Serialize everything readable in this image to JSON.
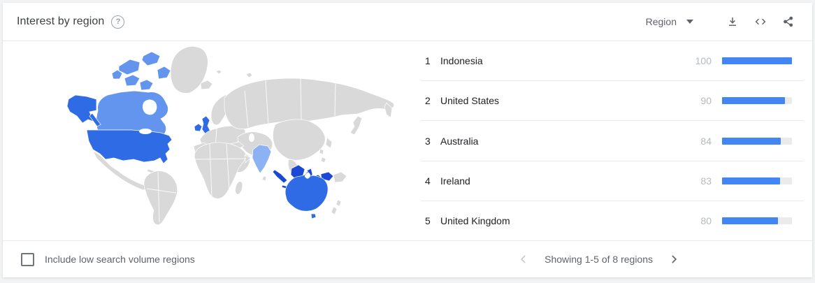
{
  "theme": {
    "page-bg": "#f1f3f4",
    "card-bg": "#ffffff",
    "divider": "#e8eaed",
    "title": "#3c4043",
    "text": "#202124",
    "muted": "#5f6368",
    "value": "#b6babe",
    "bar": "#4285f4",
    "bar-track": "#ebebeb",
    "help": "#9aa0a6",
    "arrow-disabled": "#c8cacc",
    "checkbox-border": "#70757a"
  },
  "map_colors": {
    "highest": "#1b49d5",
    "high": "#2e6be4",
    "medium": "#6395ef",
    "low": "#8db2f4",
    "none": "#d9d9d9"
  },
  "header": {
    "title": "Interest by region",
    "help_glyph": "?",
    "region_selector": {
      "value": "Region"
    },
    "actions": {
      "download": "download-icon",
      "embed": "embed-code-icon",
      "share": "share-icon"
    }
  },
  "map": {
    "regions": [
      {
        "name": "Indonesia",
        "shade": "highest"
      },
      {
        "name": "United States",
        "shade": "high"
      },
      {
        "name": "Australia",
        "shade": "high"
      },
      {
        "name": "Ireland",
        "shade": "high"
      },
      {
        "name": "United Kingdom",
        "shade": "high"
      },
      {
        "name": "Canada",
        "shade": "medium"
      },
      {
        "name": "India",
        "shade": "low"
      }
    ]
  },
  "list": {
    "max_value": 100,
    "rows": [
      {
        "rank": "1",
        "name": "Indonesia",
        "value": "100"
      },
      {
        "rank": "2",
        "name": "United States",
        "value": "90"
      },
      {
        "rank": "3",
        "name": "Australia",
        "value": "84"
      },
      {
        "rank": "4",
        "name": "Ireland",
        "value": "83"
      },
      {
        "rank": "5",
        "name": "United Kingdom",
        "value": "80"
      }
    ]
  },
  "footer": {
    "checkbox_label": "Include low search volume regions",
    "checkbox_checked": false,
    "pagination_text": "Showing 1-5 of 8 regions"
  },
  "chart_data": {
    "type": "bar",
    "title": "Interest by region",
    "orientation": "horizontal",
    "categories": [
      "Indonesia",
      "United States",
      "Australia",
      "Ireland",
      "United Kingdom"
    ],
    "values": [
      100,
      90,
      84,
      83,
      80
    ],
    "xlim": [
      0,
      100
    ],
    "note": "Showing 1-5 of 8 regions; bars show relative search interest 0-100",
    "map_shading": {
      "Indonesia": "highest",
      "United States": "high",
      "Australia": "high",
      "Ireland": "high",
      "United Kingdom": "high",
      "Canada": "medium",
      "India": "low"
    }
  }
}
